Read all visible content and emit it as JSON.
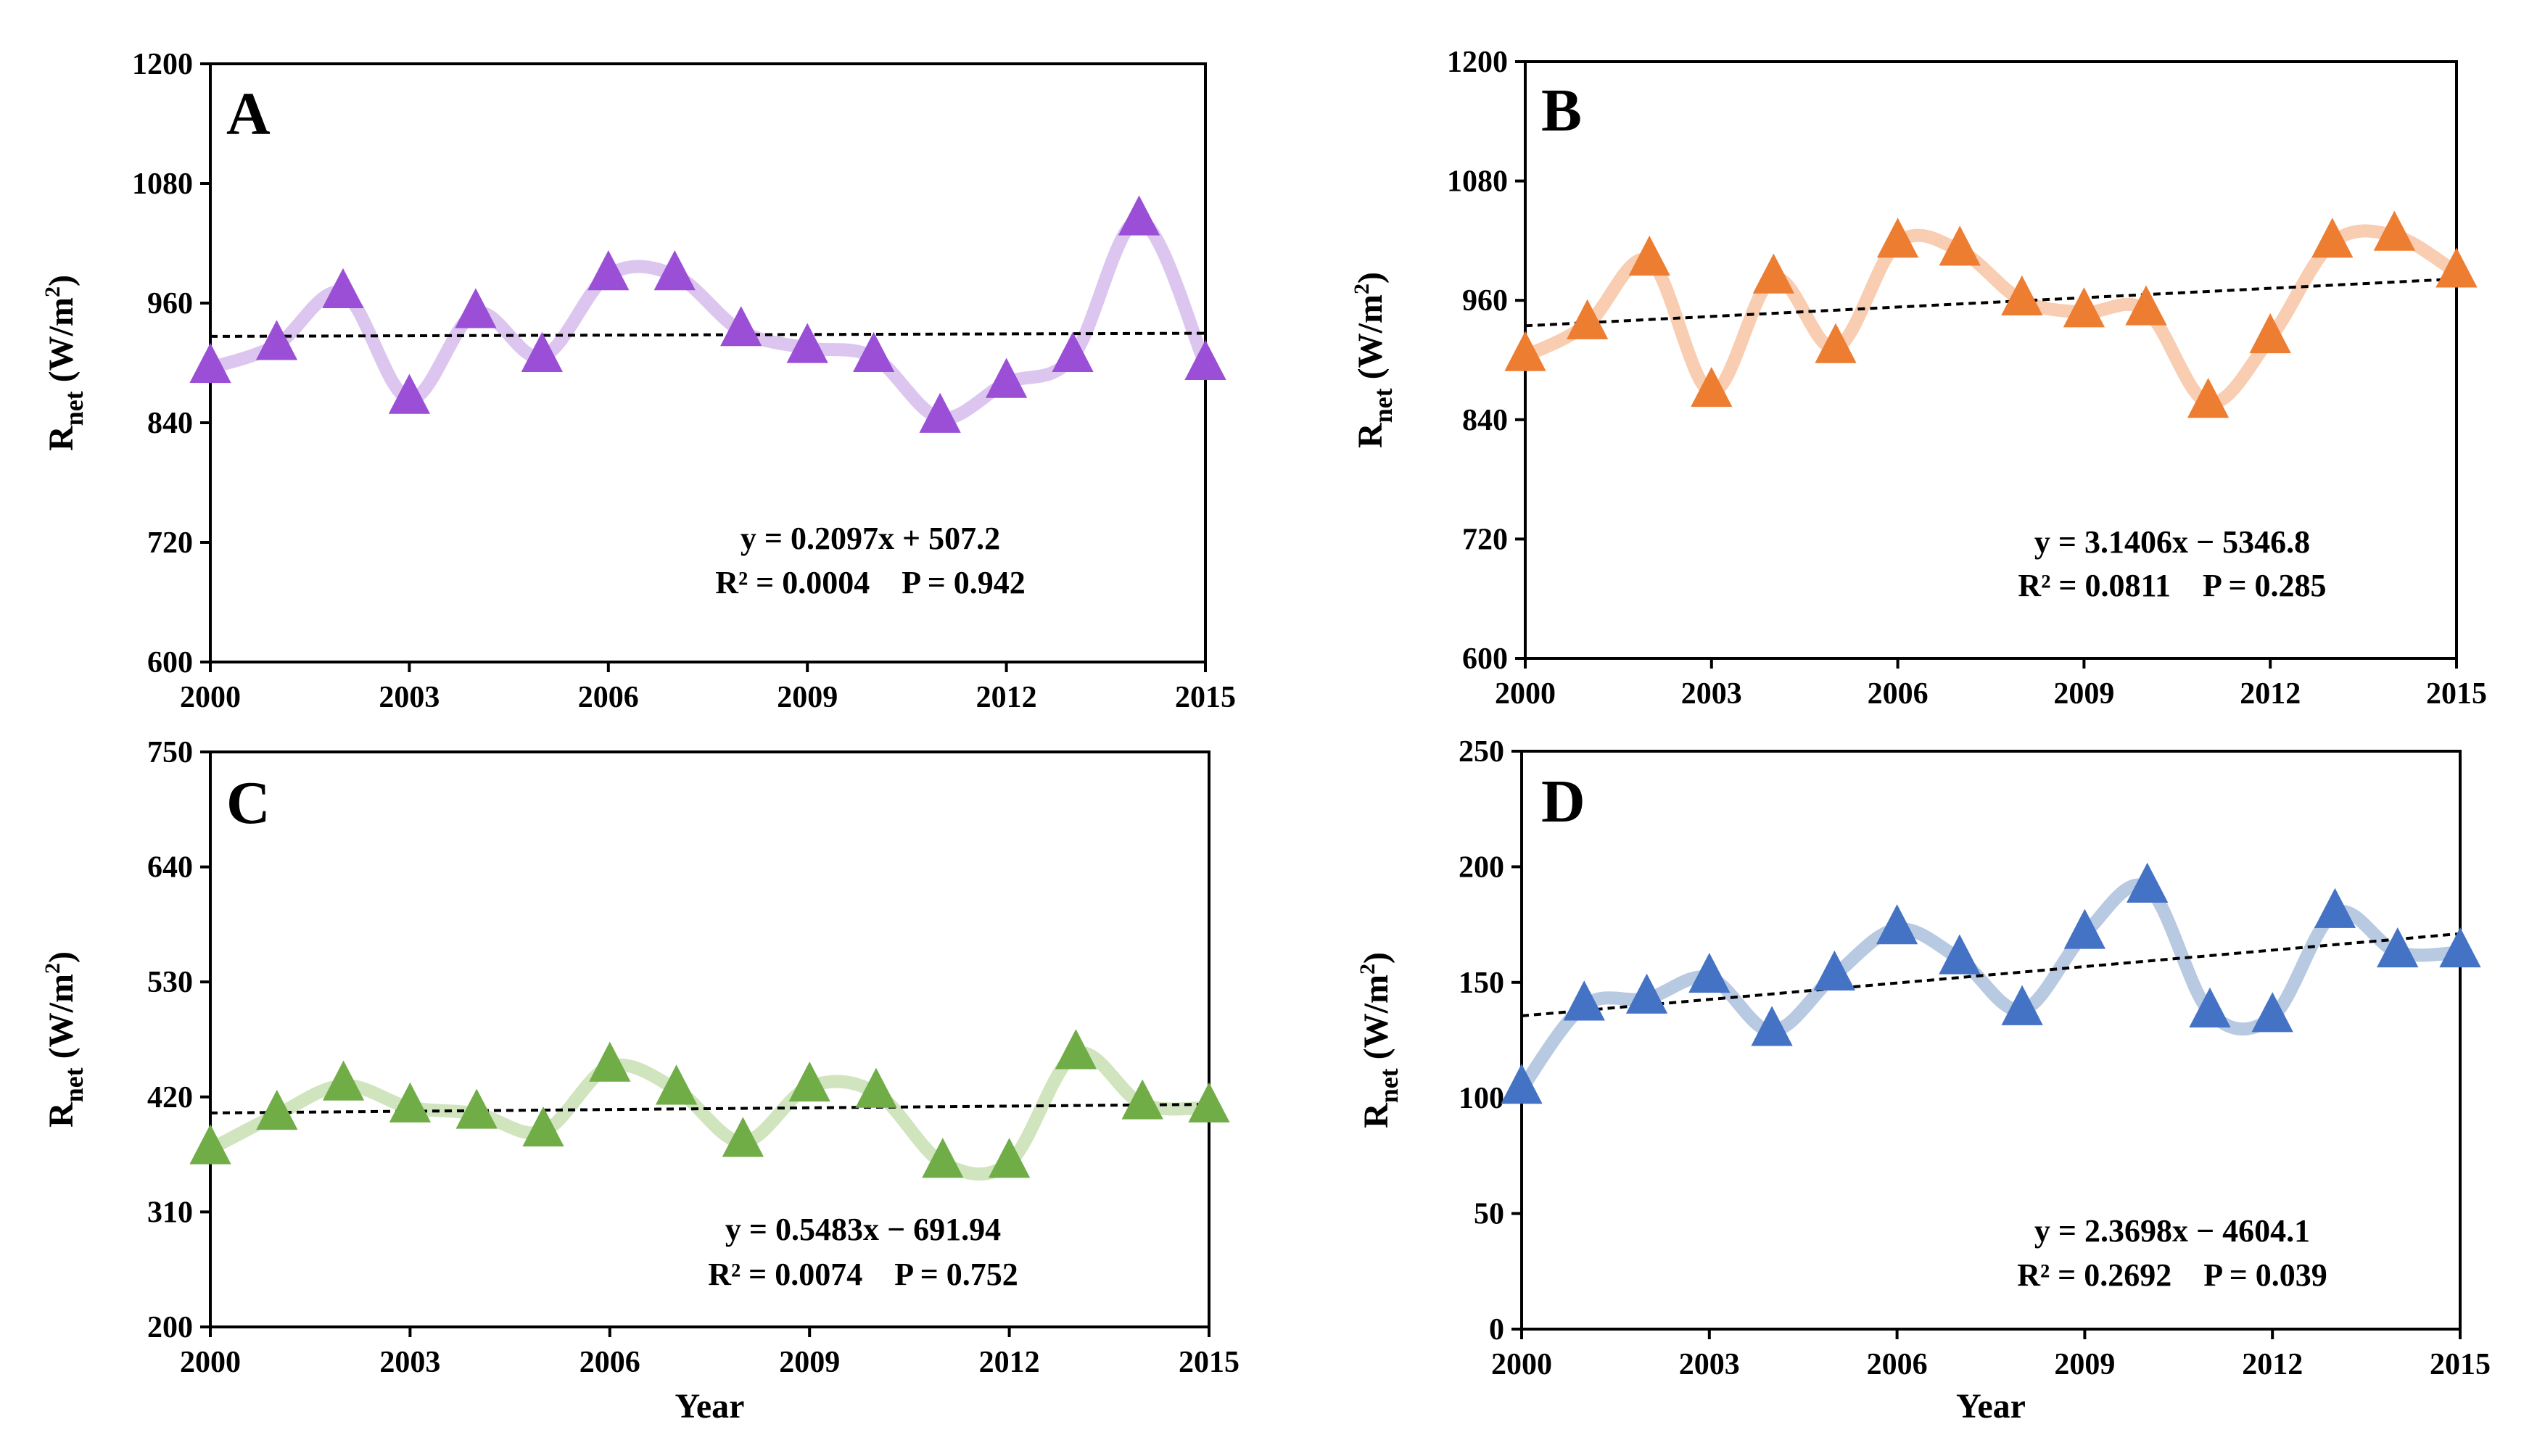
{
  "figure": {
    "xlabel": "Year",
    "ylabel_main": "R",
    "ylabel_sub": "net",
    "ylabel_unit_open": " (W/m",
    "ylabel_unit_sup": "2",
    "ylabel_unit_close": ")"
  },
  "chart_data": [
    {
      "type": "line",
      "panel": "A",
      "x": [
        2000,
        2001,
        2002,
        2003,
        2004,
        2005,
        2006,
        2007,
        2008,
        2009,
        2010,
        2011,
        2012,
        2013,
        2014,
        2015
      ],
      "series": [
        {
          "values": [
            895,
            918,
            970,
            864,
            950,
            906,
            988,
            988,
            932,
            915,
            906,
            845,
            880,
            906,
            1043,
            898
          ]
        }
      ],
      "trendline": {
        "slope": 0.2097,
        "intercept": 507.2
      },
      "equation": "y = 0.2097x + 507.2",
      "stats": "R² = 0.0004    P = 0.942",
      "xlim": [
        2000,
        2015
      ],
      "ylim": [
        600,
        1200
      ],
      "xticks": [
        "2000",
        "2003",
        "2006",
        "2009",
        "2012",
        "2015"
      ],
      "yticks": [
        "600",
        "720",
        "840",
        "960",
        "1080",
        "1200"
      ],
      "xlabel": "",
      "color_line": "#dcc6ef",
      "color_marker": "#9a4fd6"
    },
    {
      "type": "line",
      "panel": "B",
      "x": [
        2000,
        2001,
        2002,
        2003,
        2004,
        2005,
        2006,
        2007,
        2008,
        2009,
        2010,
        2011,
        2012,
        2013,
        2014,
        2015
      ],
      "series": [
        {
          "values": [
            904,
            936,
            1000,
            868,
            982,
            912,
            1018,
            1010,
            960,
            948,
            950,
            857,
            922,
            1018,
            1025,
            988
          ]
        }
      ],
      "trendline": {
        "slope": 3.1406,
        "intercept": -5346.8
      },
      "equation": "y = 3.1406x − 5346.8",
      "stats": "R² = 0.0811    P = 0.285",
      "xlim": [
        2000,
        2015
      ],
      "ylim": [
        600,
        1200
      ],
      "xticks": [
        "2000",
        "2003",
        "2006",
        "2009",
        "2012",
        "2015"
      ],
      "yticks": [
        "600",
        "720",
        "840",
        "960",
        "1080",
        "1200"
      ],
      "xlabel": "",
      "color_line": "#f8cdb2",
      "color_marker": "#ed7d31"
    },
    {
      "type": "line",
      "panel": "C",
      "x": [
        2000,
        2001,
        2002,
        2003,
        2004,
        2005,
        2006,
        2007,
        2008,
        2009,
        2010,
        2011,
        2012,
        2013,
        2014,
        2015
      ],
      "series": [
        {
          "values": [
            370,
            403,
            431,
            410,
            404,
            387,
            449,
            427,
            377,
            430,
            424,
            357,
            357,
            461,
            413,
            410
          ]
        }
      ],
      "trendline": {
        "slope": 0.5483,
        "intercept": -691.94
      },
      "equation": "y = 0.5483x − 691.94",
      "stats": "R² = 0.0074    P = 0.752",
      "xlim": [
        2000,
        2015
      ],
      "ylim": [
        200,
        750
      ],
      "xticks": [
        "2000",
        "2003",
        "2006",
        "2009",
        "2012",
        "2015"
      ],
      "yticks": [
        "200",
        "310",
        "420",
        "530",
        "640",
        "750"
      ],
      "xlabel": "Year",
      "color_line": "#d0e4be",
      "color_marker": "#70ad47"
    },
    {
      "type": "line",
      "panel": "D",
      "x": [
        2000,
        2001,
        2002,
        2003,
        2004,
        2005,
        2006,
        2007,
        2008,
        2009,
        2010,
        2011,
        2012,
        2013,
        2014,
        2015
      ],
      "series": [
        {
          "values": [
            104,
            140,
            143,
            152,
            129,
            153,
            173,
            160,
            138,
            171,
            191,
            137,
            135,
            180,
            163,
            163
          ]
        }
      ],
      "trendline": {
        "slope": 2.3698,
        "intercept": -4604.1
      },
      "equation": "y = 2.3698x − 4604.1",
      "stats": "R² = 0.2692    P = 0.039",
      "xlim": [
        2000,
        2015
      ],
      "ylim": [
        0,
        250
      ],
      "xticks": [
        "2000",
        "2003",
        "2006",
        "2009",
        "2012",
        "2015"
      ],
      "yticks": [
        "0",
        "50",
        "100",
        "150",
        "200",
        "250"
      ],
      "xlabel": "Year",
      "color_line": "#b8c9e2",
      "color_marker": "#4472c4"
    }
  ]
}
